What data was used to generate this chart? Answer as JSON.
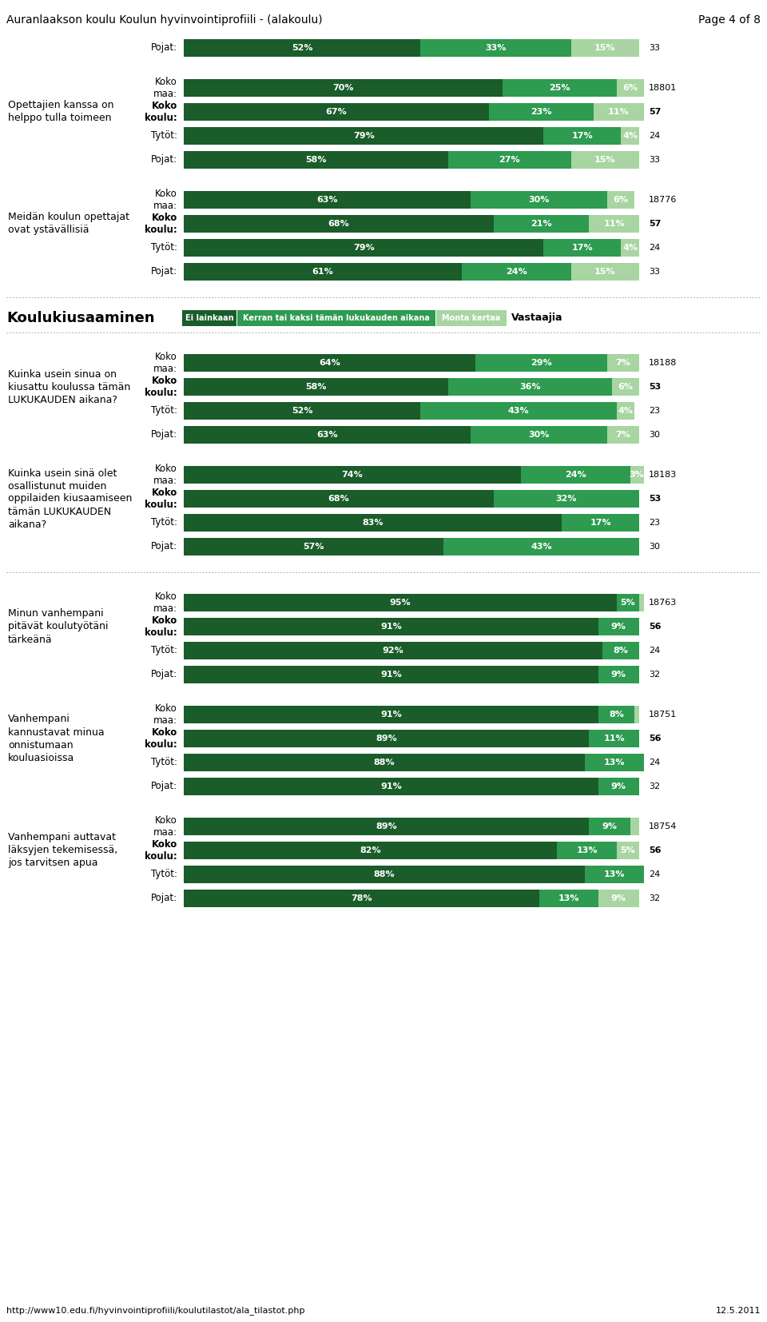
{
  "title_left": "Auranlaakson koulu Koulun hyvinvointiprofiili - (alakoulu)",
  "title_right": "Page 4 of 8",
  "footer": "http://www10.edu.fi/hyvinvointiprofiili/koulutilastot/ala_tilastot.php",
  "footer_right": "12.5.2011",
  "colors": {
    "dark_green": "#1a5c2a",
    "mid_green": "#2e9b50",
    "light_green": "#a8d5a2"
  },
  "top_row": {
    "name": "Pojat:",
    "vals": [
      52,
      33,
      15
    ],
    "n": "33",
    "bold": false
  },
  "sections": [
    {
      "label": "Opettajien kanssa on\nhelppo tulla toimeen",
      "rows": [
        {
          "name": "Koko\nmaa:",
          "vals": [
            70,
            25,
            6
          ],
          "n": "18801",
          "bold": false
        },
        {
          "name": "Koko\nkoulu:",
          "vals": [
            67,
            23,
            11
          ],
          "n": "57",
          "bold": true
        },
        {
          "name": "Tytöt:",
          "vals": [
            79,
            17,
            4
          ],
          "n": "24",
          "bold": false
        },
        {
          "name": "Pojat:",
          "vals": [
            58,
            27,
            15
          ],
          "n": "33",
          "bold": false
        }
      ]
    },
    {
      "label": "Meidän koulun opettajat\novat ystävällisiä",
      "rows": [
        {
          "name": "Koko\nmaa:",
          "vals": [
            63,
            30,
            6
          ],
          "n": "18776",
          "bold": false
        },
        {
          "name": "Koko\nkoulu:",
          "vals": [
            68,
            21,
            11
          ],
          "n": "57",
          "bold": true
        },
        {
          "name": "Tytöt:",
          "vals": [
            79,
            17,
            4
          ],
          "n": "24",
          "bold": false
        },
        {
          "name": "Pojat:",
          "vals": [
            61,
            24,
            15
          ],
          "n": "33",
          "bold": false
        }
      ]
    }
  ],
  "kiusaaminen_header": {
    "label": "Koulukiusaaminen",
    "legends": [
      "Ei lainkaan",
      "Kerran tai kaksi tämän lukukauden aikana",
      "Monta kertaa",
      "Vastaajia"
    ]
  },
  "sections2": [
    {
      "label": "Kuinka usein sinua on\nkiusattu koulussa tämän\nLUKUKAUDEN aikana?",
      "rows": [
        {
          "name": "Koko\nmaa:",
          "vals": [
            64,
            29,
            7
          ],
          "n": "18188",
          "bold": false
        },
        {
          "name": "Koko\nkoulu:",
          "vals": [
            58,
            36,
            6
          ],
          "n": "53",
          "bold": true
        },
        {
          "name": "Tytöt:",
          "vals": [
            52,
            43,
            4
          ],
          "n": "23",
          "bold": false
        },
        {
          "name": "Pojat:",
          "vals": [
            63,
            30,
            7
          ],
          "n": "30",
          "bold": false
        }
      ]
    },
    {
      "label": "Kuinka usein sinä olet\nosallistunut muiden\noppilaiden kiusaamiseen\ntämän LUKUKAUDEN\naikana?",
      "rows": [
        {
          "name": "Koko\nmaa:",
          "vals": [
            74,
            24,
            3
          ],
          "n": "18183",
          "bold": false
        },
        {
          "name": "Koko\nkoulu:",
          "vals": [
            68,
            32,
            0
          ],
          "n": "53",
          "bold": true
        },
        {
          "name": "Tytöt:",
          "vals": [
            83,
            17,
            0
          ],
          "n": "23",
          "bold": false
        },
        {
          "name": "Pojat:",
          "vals": [
            57,
            43,
            0
          ],
          "n": "30",
          "bold": false
        }
      ]
    }
  ],
  "sections3": [
    {
      "label": "Minun vanhempani\npitävät koulutyötäni\ntärkeänä",
      "rows": [
        {
          "name": "Koko\nmaa:",
          "vals": [
            95,
            5,
            1
          ],
          "n": "18763",
          "bold": false
        },
        {
          "name": "Koko\nkoulu:",
          "vals": [
            91,
            9,
            0
          ],
          "n": "56",
          "bold": true
        },
        {
          "name": "Tytöt:",
          "vals": [
            92,
            8,
            0
          ],
          "n": "24",
          "bold": false
        },
        {
          "name": "Pojat:",
          "vals": [
            91,
            9,
            0
          ],
          "n": "32",
          "bold": false
        }
      ]
    },
    {
      "label": "Vanhempani\nkannustavat minua\nonnistumaan\nkouluasioissa",
      "rows": [
        {
          "name": "Koko\nmaa:",
          "vals": [
            91,
            8,
            1
          ],
          "n": "18751",
          "bold": false
        },
        {
          "name": "Koko\nkoulu:",
          "vals": [
            89,
            11,
            0
          ],
          "n": "56",
          "bold": true
        },
        {
          "name": "Tytöt:",
          "vals": [
            88,
            13,
            0
          ],
          "n": "24",
          "bold": false
        },
        {
          "name": "Pojat:",
          "vals": [
            91,
            9,
            0
          ],
          "n": "32",
          "bold": false
        }
      ]
    },
    {
      "label": "Vanhempani auttavat\nläksyjen tekemisessä,\njos tarvitsen apua",
      "rows": [
        {
          "name": "Koko\nmaa:",
          "vals": [
            89,
            9,
            2
          ],
          "n": "18754",
          "bold": false
        },
        {
          "name": "Koko\nkoulu:",
          "vals": [
            82,
            13,
            5
          ],
          "n": "56",
          "bold": true
        },
        {
          "name": "Tytöt:",
          "vals": [
            88,
            13,
            0
          ],
          "n": "24",
          "bold": false
        },
        {
          "name": "Pojat:",
          "vals": [
            78,
            13,
            9
          ],
          "n": "32",
          "bold": false
        }
      ]
    }
  ]
}
